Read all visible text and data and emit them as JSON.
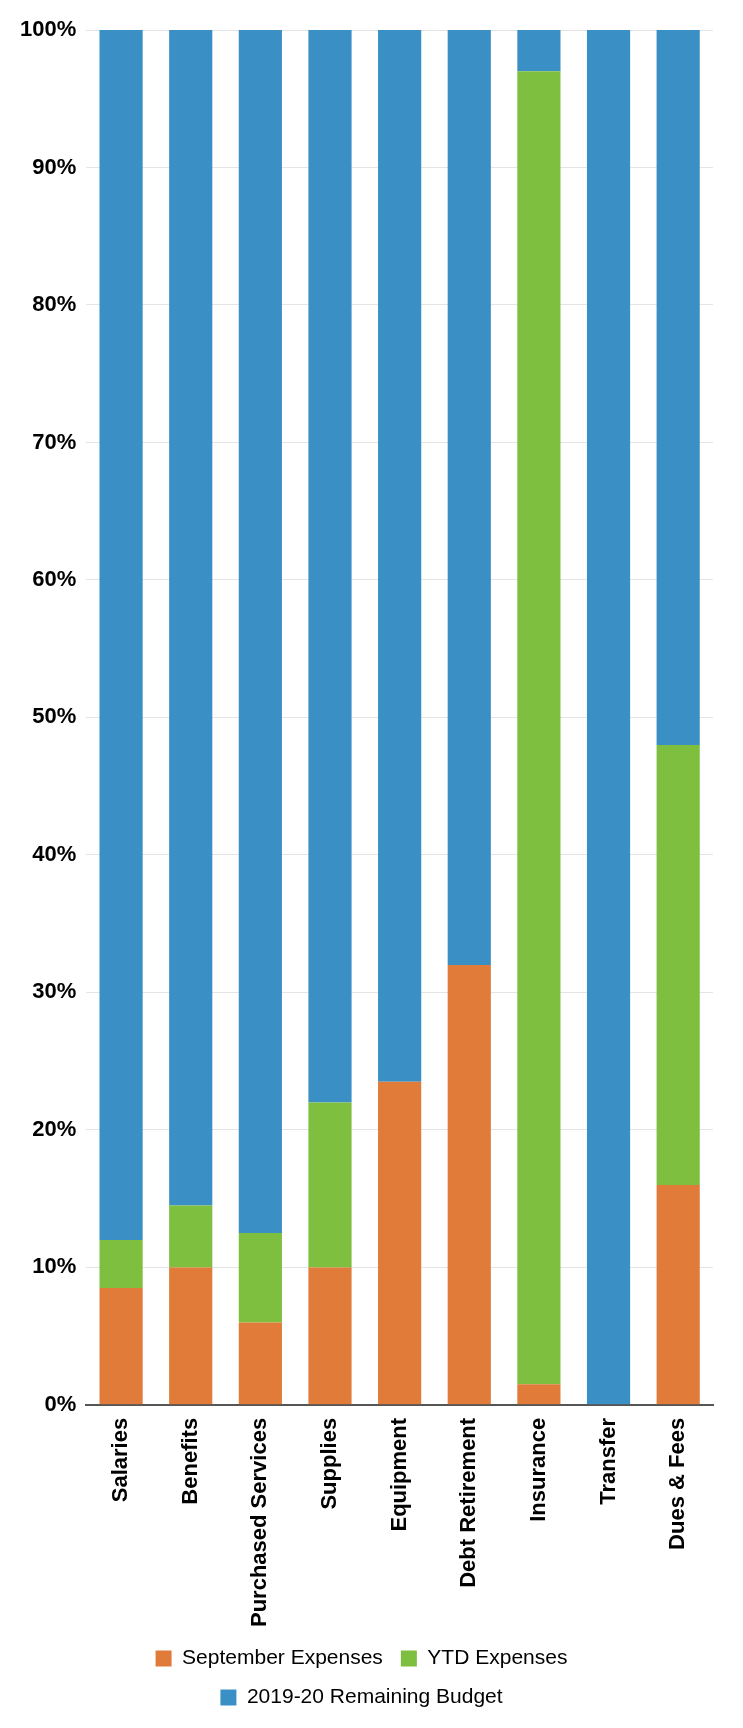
{
  "chart_data": {
    "type": "bar",
    "stacked": true,
    "categories": [
      "Salaries",
      "Benefits",
      "Purchased Services",
      "Supplies",
      "Equipment",
      "Debt Retirement",
      "Insurance",
      "Transfer",
      "Dues & Fees"
    ],
    "series": [
      {
        "name": "September Expenses",
        "color": "#e07b39",
        "values": [
          8.5,
          10,
          6,
          10,
          23.5,
          32,
          1.5,
          0,
          16
        ]
      },
      {
        "name": "YTD Expenses",
        "color": "#7fbf3f",
        "values": [
          3.5,
          4.5,
          6.5,
          12,
          0,
          0,
          95.5,
          0,
          32
        ]
      },
      {
        "name": "2019-20 Remaining Budget",
        "color": "#3a8fc4",
        "values": [
          88,
          85.5,
          87.5,
          78,
          76.5,
          68,
          3,
          100,
          52
        ]
      }
    ],
    "ylim": [
      0,
      100
    ],
    "yticks": [
      {
        "value": 0,
        "label": "0%"
      },
      {
        "value": 10,
        "label": "10%"
      },
      {
        "value": 20,
        "label": "20%"
      },
      {
        "value": 30,
        "label": "30%"
      },
      {
        "value": 40,
        "label": "40%"
      },
      {
        "value": 50,
        "label": "50%"
      },
      {
        "value": 60,
        "label": "60%"
      },
      {
        "value": 70,
        "label": "70%"
      },
      {
        "value": 80,
        "label": "80%"
      },
      {
        "value": 90,
        "label": "90%"
      },
      {
        "value": 100,
        "label": "100%"
      }
    ],
    "grid": "y",
    "legend": "bottom"
  }
}
